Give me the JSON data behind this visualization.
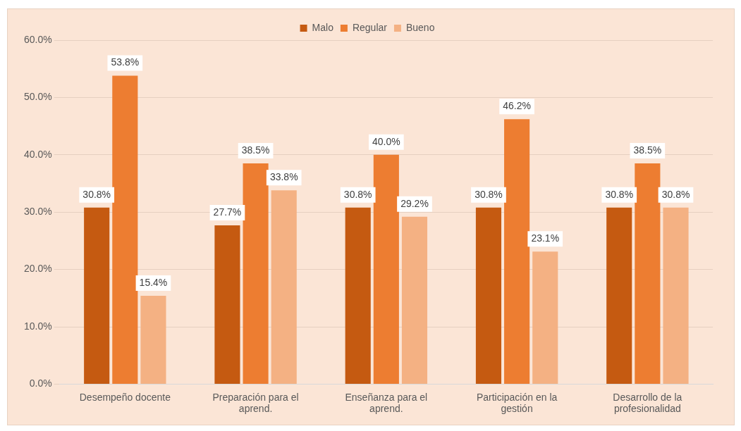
{
  "chart_data": {
    "type": "bar",
    "categories": [
      "Desempeño docente",
      "Preparación para el aprend.",
      "Enseñanza para el aprend.",
      "Participación en la gestión",
      "Desarrollo de la profesionalidad"
    ],
    "series": [
      {
        "name": "Malo",
        "color": "#c55a11",
        "values": [
          30.8,
          27.7,
          30.8,
          30.8,
          30.8
        ]
      },
      {
        "name": "Regular",
        "color": "#ed7d31",
        "values": [
          53.8,
          38.5,
          40.0,
          46.2,
          38.5
        ]
      },
      {
        "name": "Bueno",
        "color": "#f4b183",
        "values": [
          15.4,
          33.8,
          29.2,
          23.1,
          30.8
        ]
      }
    ],
    "ylim": [
      0,
      60
    ],
    "yticks": [
      {
        "value": 0,
        "label": "0.0%"
      },
      {
        "value": 10,
        "label": "10.0%"
      },
      {
        "value": 20,
        "label": "20.0%"
      },
      {
        "value": 30,
        "label": "30.0%"
      },
      {
        "value": 40,
        "label": "40.0%"
      },
      {
        "value": 50,
        "label": "50.0%"
      },
      {
        "value": 60,
        "label": "60.0%"
      }
    ],
    "value_labels": [
      [
        "30.8%",
        "27.7%",
        "30.8%",
        "30.8%",
        "30.8%"
      ],
      [
        "53.8%",
        "38.5%",
        "40.0%",
        "46.2%",
        "38.5%"
      ],
      [
        "15.4%",
        "33.8%",
        "29.2%",
        "23.1%",
        "30.8%"
      ]
    ],
    "grid": "y",
    "legend": "top"
  }
}
